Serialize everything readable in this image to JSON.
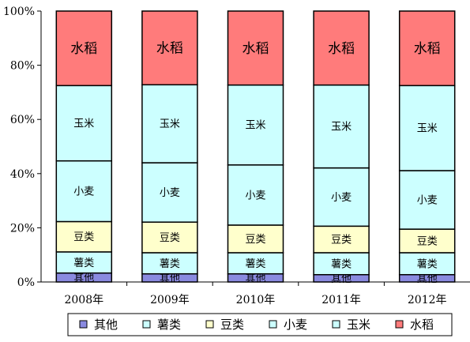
{
  "chart_data": {
    "type": "bar",
    "stacking": "percent",
    "title": "",
    "xlabel": "",
    "ylabel": "",
    "ylim": [
      0,
      100
    ],
    "y_ticks": [
      "0%",
      "20%",
      "40%",
      "60%",
      "80%",
      "100%"
    ],
    "grid": false,
    "legend_position": "bottom",
    "categories": [
      "2008年",
      "2009年",
      "2010年",
      "2011年",
      "2012年"
    ],
    "series": [
      {
        "name": "其他",
        "color": "#8a8ae0",
        "values": [
          3.3,
          3.0,
          3.0,
          2.7,
          2.7
        ]
      },
      {
        "name": "薯类",
        "color": "#ccffff",
        "values": [
          7.8,
          7.8,
          7.8,
          8.1,
          8.1
        ]
      },
      {
        "name": "豆类",
        "color": "#ffffcc",
        "values": [
          11.2,
          11.3,
          10.2,
          9.8,
          8.7
        ]
      },
      {
        "name": "小麦",
        "color": "#ccffff",
        "values": [
          22.4,
          21.9,
          22.2,
          21.5,
          21.6
        ]
      },
      {
        "name": "玉米",
        "color": "#ccffff",
        "values": [
          27.8,
          28.8,
          29.5,
          30.6,
          31.4
        ]
      },
      {
        "name": "水稻",
        "color": "#ff7b7b",
        "values": [
          27.5,
          27.2,
          27.3,
          27.3,
          27.5
        ]
      }
    ]
  }
}
